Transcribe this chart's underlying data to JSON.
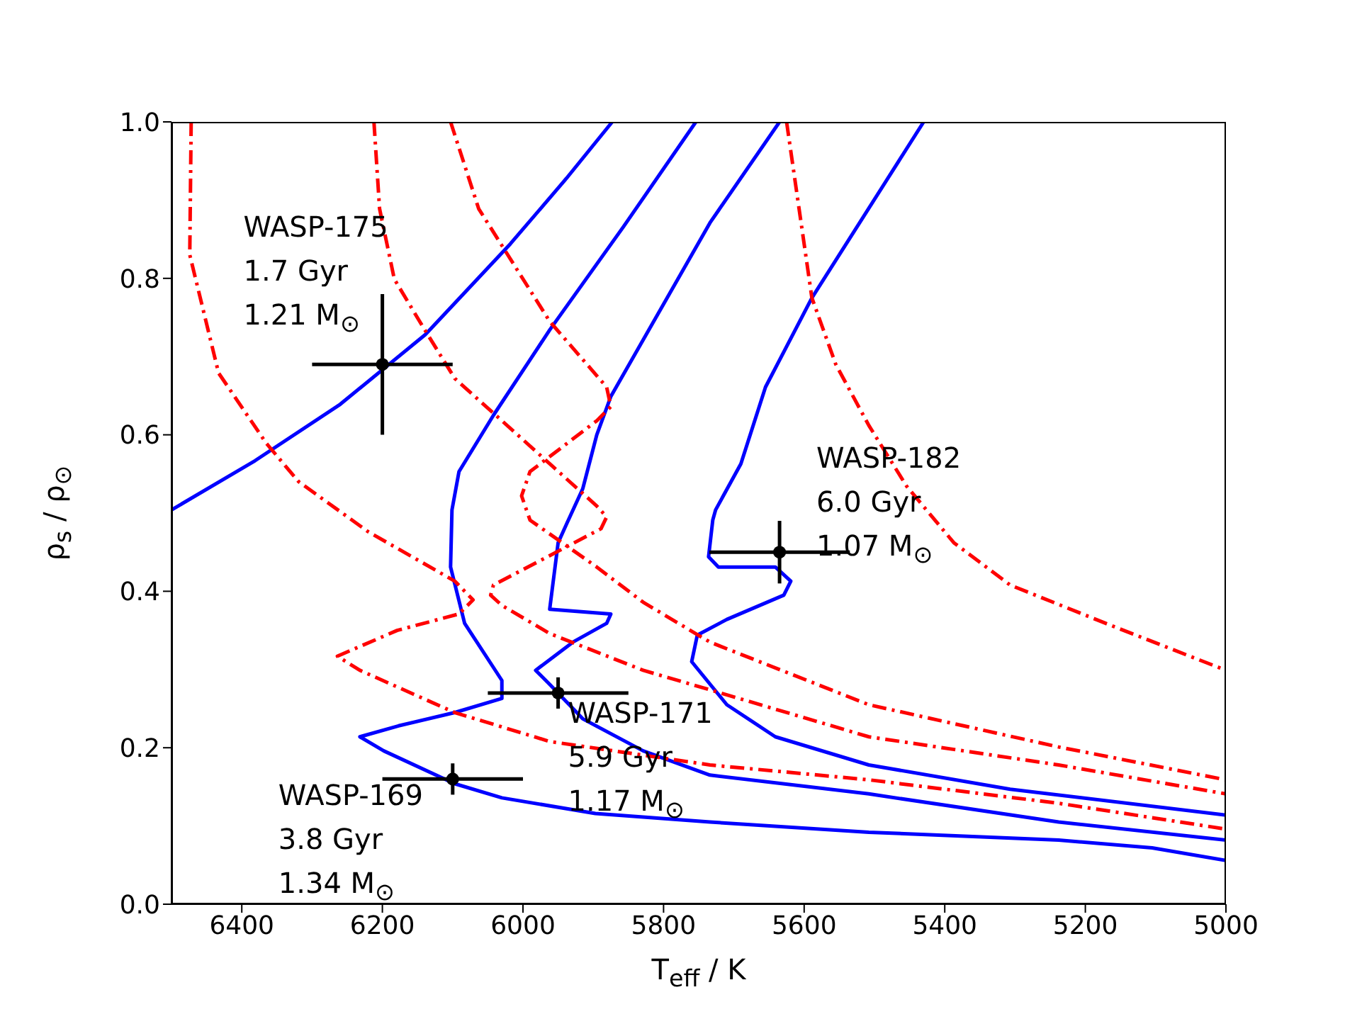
{
  "chart_data": {
    "type": "line",
    "xlabel": "T$_{eff}$ / K",
    "ylabel": "ρ$_{s}$ / ρ$_{⊙}$",
    "xlim": [
      6500,
      5000
    ],
    "xticks": [
      6400,
      6200,
      6000,
      5800,
      5600,
      5400,
      5200,
      5000
    ],
    "ylim": [
      0,
      1
    ],
    "yticks": [
      {
        "value": 0,
        "label": "0.0"
      },
      0.2,
      0.4,
      0.6,
      0.8,
      {
        "value": 1,
        "label": "1.0"
      }
    ],
    "series": [
      {
        "type": "line",
        "color": "#0000ff",
        "line_style": "solid",
        "marker": "none",
        "x": [
          6500,
          6381,
          6260,
          6139,
          6018,
          5938,
          5873
        ],
        "values": [
          0.504,
          0.567,
          0.639,
          0.728,
          0.844,
          0.928,
          1.0
        ]
      },
      {
        "type": "line",
        "color": "#0000ff",
        "line_style": "solid",
        "marker": "none",
        "x": [
          5754,
          5857,
          5962,
          6042,
          6091,
          6101,
          6103,
          6083,
          6030,
          6030,
          6097,
          6177,
          6232,
          6198,
          6097,
          6030,
          5897,
          5734,
          5508,
          5238,
          5105,
          5000
        ],
        "values": [
          1.0,
          0.866,
          0.734,
          0.625,
          0.553,
          0.504,
          0.431,
          0.359,
          0.286,
          0.263,
          0.245,
          0.228,
          0.214,
          0.196,
          0.154,
          0.136,
          0.116,
          0.105,
          0.092,
          0.082,
          0.072,
          0.056
        ]
      },
      {
        "type": "line",
        "color": "#0000ff",
        "line_style": "solid",
        "marker": "none",
        "x": [
          5635,
          5734,
          5875,
          5895,
          5915,
          5938,
          5950,
          5962,
          5875,
          5881,
          5929,
          5982,
          5962,
          5915,
          5829,
          5734,
          5508,
          5238,
          5000
        ],
        "values": [
          1.0,
          0.871,
          0.649,
          0.6,
          0.531,
          0.486,
          0.462,
          0.377,
          0.371,
          0.359,
          0.335,
          0.299,
          0.281,
          0.237,
          0.196,
          0.165,
          0.141,
          0.105,
          0.082
        ]
      },
      {
        "type": "line",
        "color": "#0000ff",
        "line_style": "solid",
        "marker": "none",
        "x": [
          5430,
          5589,
          5655,
          5690,
          5726,
          5730,
          5736,
          5722,
          5641,
          5619,
          5629,
          5710,
          5752,
          5760,
          5710,
          5641,
          5508,
          5307,
          5000
        ],
        "values": [
          1.0,
          0.775,
          0.661,
          0.563,
          0.504,
          0.491,
          0.444,
          0.431,
          0.431,
          0.413,
          0.395,
          0.364,
          0.344,
          0.31,
          0.255,
          0.214,
          0.178,
          0.147,
          0.114
        ]
      },
      {
        "type": "line",
        "color": "#ff0000",
        "line_style": "dashdot",
        "marker": "none",
        "x": [
          6472,
          6474,
          6433,
          6365,
          6319,
          6220,
          6097,
          6071,
          6091,
          6179,
          6264,
          6232,
          6097,
          5962,
          5734,
          5508,
          5238,
          5000
        ],
        "values": [
          1.0,
          0.83,
          0.679,
          0.589,
          0.54,
          0.476,
          0.413,
          0.389,
          0.371,
          0.35,
          0.317,
          0.299,
          0.245,
          0.208,
          0.178,
          0.159,
          0.129,
          0.096
        ]
      },
      {
        "type": "line",
        "color": "#ff0000",
        "line_style": "dashdot",
        "marker": "none",
        "x": [
          6212,
          6204,
          6183,
          6143,
          6097,
          6030,
          5962,
          5895,
          5881,
          5889,
          5942,
          6042,
          6046,
          6030,
          5962,
          5829,
          5734,
          5508,
          5238,
          5000
        ],
        "values": [
          1.0,
          0.889,
          0.799,
          0.739,
          0.672,
          0.618,
          0.563,
          0.509,
          0.495,
          0.48,
          0.455,
          0.408,
          0.395,
          0.382,
          0.346,
          0.299,
          0.274,
          0.214,
          0.178,
          0.141
        ]
      },
      {
        "type": "line",
        "color": "#ff0000",
        "line_style": "dashdot",
        "marker": "none",
        "x": [
          6103,
          6063,
          5962,
          5881,
          5875,
          5895,
          5990,
          6002,
          5990,
          5895,
          5829,
          5734,
          5508,
          5238,
          5000
        ],
        "values": [
          1.0,
          0.889,
          0.745,
          0.661,
          0.636,
          0.618,
          0.553,
          0.522,
          0.491,
          0.431,
          0.386,
          0.335,
          0.255,
          0.201,
          0.159
        ]
      },
      {
        "type": "line",
        "color": "#ff0000",
        "line_style": "dashdot",
        "marker": "none",
        "x": [
          5625,
          5589,
          5555,
          5508,
          5454,
          5387,
          5307,
          5171,
          5000
        ],
        "values": [
          1.0,
          0.775,
          0.69,
          0.612,
          0.534,
          0.462,
          0.408,
          0.359,
          0.299
        ]
      },
      {
        "type": "scatter",
        "color": "#000000",
        "marker": "circle",
        "x": [
          6200,
          6100,
          5950,
          5635
        ],
        "values": [
          0.69,
          0.16,
          0.27,
          0.45
        ],
        "errors": [
          0.09,
          0.02,
          0.02,
          0.04
        ],
        "xerrors": [
          100,
          100,
          100,
          100
        ]
      }
    ],
    "annotations": [
      {
        "text": "WASP-175\n1.7 Gyr\n1.21 M$_{⊙}$",
        "x": 6200,
        "y": 0.69
      },
      {
        "text": "WASP-182\n6.0 Gyr\n1.07 M$_{⊙}$",
        "x": 5635,
        "y": 0.45
      },
      {
        "text": "WASP-171\n5.9 Gyr\n1.17 M$_{⊙}$",
        "x": 5950,
        "y": 0.27
      },
      {
        "text": "WASP-169\n3.8 Gyr\n1.34 M$_{⊙}$",
        "x": 6100,
        "y": 0.16
      }
    ]
  }
}
